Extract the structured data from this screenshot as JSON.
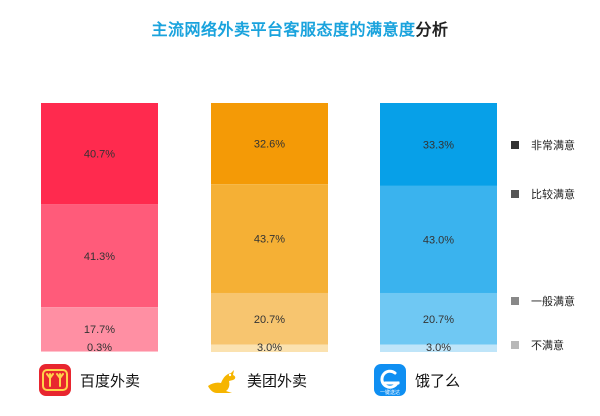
{
  "title": {
    "main": "主流网络外卖平台客服态度的满意度",
    "tail": "分析"
  },
  "colors": {
    "baidu": [
      "#ff2a4e",
      "#ff5b7a",
      "#ff8fa3",
      "#ffc2cc"
    ],
    "meituan": [
      "#f49a06",
      "#f5b035",
      "#f7c56f",
      "#fbe2b0"
    ],
    "eleme": [
      "#07a0e8",
      "#3ab3ee",
      "#6fc8f3",
      "#bfe5f9"
    ],
    "legend": [
      "#333333",
      "#555555",
      "#888888",
      "#b8b8b8"
    ]
  },
  "brands": [
    {
      "name": "百度外卖",
      "icon": "baidu-waimai-logo-icon"
    },
    {
      "name": "美团外卖",
      "icon": "meituan-kangaroo-logo-icon"
    },
    {
      "name": "饿了么",
      "icon": "eleme-logo-icon",
      "badge": "一键送达"
    }
  ],
  "chart_data": {
    "type": "bar",
    "stacked": true,
    "percent": true,
    "title": "主流网络外卖平台客服态度的满意度分析",
    "categories": [
      "百度外卖",
      "美团外卖",
      "饿了么"
    ],
    "series": [
      {
        "name": "非常满意",
        "values": [
          40.7,
          32.6,
          33.3
        ],
        "labels": [
          "40.7%",
          "32.6%",
          "33.3%"
        ]
      },
      {
        "name": "比较满意",
        "values": [
          41.3,
          43.7,
          43.0
        ],
        "labels": [
          "41.3%",
          "43.7%",
          "43.0%"
        ]
      },
      {
        "name": "一般满意",
        "values": [
          17.7,
          20.7,
          20.7
        ],
        "labels": [
          "17.7%",
          "20.7%",
          "20.7%"
        ]
      },
      {
        "name": "不满意",
        "values": [
          0.3,
          3.0,
          3.0
        ],
        "labels": [
          "0.3%",
          "3.0%",
          "3.0%"
        ]
      }
    ],
    "legend_position": "right",
    "grid": false
  }
}
